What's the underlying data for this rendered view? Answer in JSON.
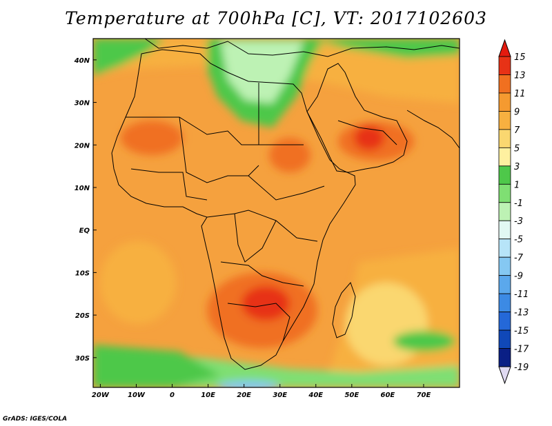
{
  "title": "Temperature at 700hPa [C], VT: 2017102603",
  "credit": "GrADS: IGES/COLA",
  "map": {
    "lon_range": [
      -22,
      80
    ],
    "lat_range": [
      -37,
      45
    ],
    "lat_ticks": [
      {
        "value": 40,
        "label": "40N"
      },
      {
        "value": 30,
        "label": "30N"
      },
      {
        "value": 20,
        "label": "20N"
      },
      {
        "value": 10,
        "label": "10N"
      },
      {
        "value": 0,
        "label": "EQ"
      },
      {
        "value": -10,
        "label": "10S"
      },
      {
        "value": -20,
        "label": "20S"
      },
      {
        "value": -30,
        "label": "30S"
      }
    ],
    "lon_ticks": [
      {
        "value": -20,
        "label": "20W"
      },
      {
        "value": -10,
        "label": "10W"
      },
      {
        "value": 0,
        "label": "0"
      },
      {
        "value": 10,
        "label": "10E"
      },
      {
        "value": 20,
        "label": "20E"
      },
      {
        "value": 30,
        "label": "30E"
      },
      {
        "value": 40,
        "label": "40E"
      },
      {
        "value": 50,
        "label": "50E"
      },
      {
        "value": 60,
        "label": "60E"
      },
      {
        "value": 70,
        "label": "70E"
      }
    ],
    "base_color": "#f5a13e"
  },
  "colorbar": {
    "levels": [
      "15",
      "13",
      "11",
      "9",
      "7",
      "5",
      "3",
      "1",
      "-1",
      "-3",
      "-5",
      "-7",
      "-9",
      "-11",
      "-13",
      "-15",
      "-17",
      "-19"
    ],
    "colors": [
      "#e73216",
      "#f07020",
      "#f59a30",
      "#f7b040",
      "#fad770",
      "#fef0a0",
      "#4ec84a",
      "#7fdf73",
      "#bdf2b4",
      "#e2f8f3",
      "#b7e4f8",
      "#85c8f2",
      "#5ba8ec",
      "#3c8ae4",
      "#2468d8",
      "#1048b8",
      "#0a1f85"
    ],
    "top_cap_color": "#e31b0f",
    "bottom_cap_color": "#e0daf2"
  }
}
